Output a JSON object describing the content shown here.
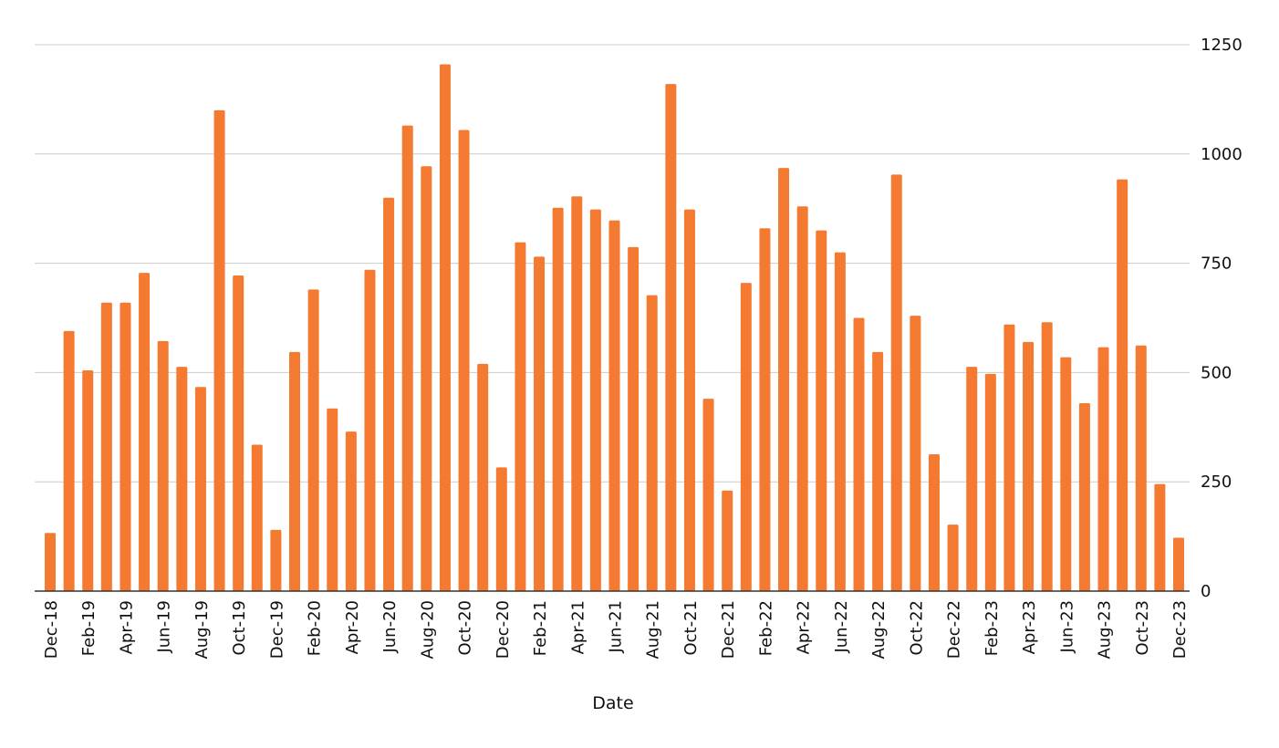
{
  "chart_data": {
    "type": "bar",
    "xlabel": "Date",
    "ylabel": "",
    "ylim": [
      0,
      1250
    ],
    "yticks": [
      0,
      250,
      500,
      750,
      1000,
      1250
    ],
    "y_axis_side": "right",
    "grid": true,
    "bar_color": "#f47a31",
    "categories": [
      "Dec-18",
      "Jan-19",
      "Feb-19",
      "Mar-19",
      "Apr-19",
      "May-19",
      "Jun-19",
      "Jul-19",
      "Aug-19",
      "Sep-19",
      "Oct-19",
      "Nov-19",
      "Dec-19",
      "Jan-20",
      "Feb-20",
      "Mar-20",
      "Apr-20",
      "May-20",
      "Jun-20",
      "Jul-20",
      "Aug-20",
      "Sep-20",
      "Oct-20",
      "Nov-20",
      "Dec-20",
      "Jan-21",
      "Feb-21",
      "Mar-21",
      "Apr-21",
      "May-21",
      "Jun-21",
      "Jul-21",
      "Aug-21",
      "Sep-21",
      "Oct-21",
      "Nov-21",
      "Dec-21",
      "Jan-22",
      "Feb-22",
      "Mar-22",
      "Apr-22",
      "May-22",
      "Jun-22",
      "Jul-22",
      "Aug-22",
      "Sep-22",
      "Oct-22",
      "Nov-22",
      "Dec-22",
      "Jan-23",
      "Feb-23",
      "Mar-23",
      "Apr-23",
      "May-23",
      "Jun-23",
      "Jul-23",
      "Aug-23",
      "Sep-23",
      "Oct-23",
      "Nov-23",
      "Dec-23"
    ],
    "visible_tick_labels": [
      "Dec-18",
      "Feb-19",
      "Apr-19",
      "Jun-19",
      "Aug-19",
      "Oct-19",
      "Dec-19",
      "Feb-20",
      "Apr-20",
      "Jun-20",
      "Aug-20",
      "Oct-20",
      "Dec-20",
      "Feb-21",
      "Apr-21",
      "Jun-21",
      "Aug-21",
      "Oct-21",
      "Dec-21",
      "Feb-22",
      "Apr-22",
      "Jun-22",
      "Aug-22",
      "Oct-22",
      "Dec-22",
      "Feb-23",
      "Apr-23",
      "Jun-23",
      "Aug-23",
      "Oct-23",
      "Dec-23"
    ],
    "values": [
      133,
      595,
      505,
      660,
      660,
      728,
      572,
      513,
      467,
      1100,
      722,
      335,
      140,
      547,
      690,
      418,
      365,
      735,
      900,
      1065,
      972,
      1205,
      1055,
      520,
      283,
      798,
      765,
      877,
      903,
      873,
      848,
      787,
      677,
      1160,
      873,
      440,
      230,
      705,
      830,
      968,
      880,
      825,
      775,
      625,
      547,
      953,
      630,
      313,
      152,
      513,
      497,
      610,
      570,
      615,
      535,
      430,
      558,
      942,
      562,
      245,
      122
    ]
  }
}
